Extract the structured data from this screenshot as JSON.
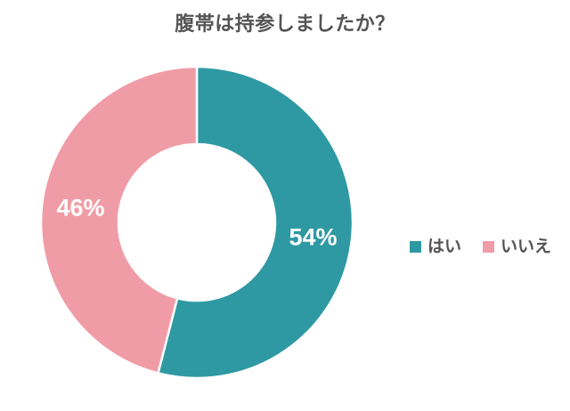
{
  "title": "腹帯は持参しましたか？",
  "chart_data": {
    "type": "pie",
    "subtype": "donut",
    "title": "腹帯は持参しましたか？",
    "categories": [
      "はい",
      "いいえ"
    ],
    "values": [
      54,
      46
    ],
    "labels": [
      "54%",
      "46%"
    ],
    "colors": [
      "#2F99A3",
      "#F09CA6"
    ],
    "start_angle_deg": 0,
    "direction": "clockwise",
    "donut_hole_ratio": 0.5,
    "legend_position": "right",
    "label_color": "#ffffff"
  },
  "legend": {
    "items": [
      {
        "label": "はい",
        "color": "#2F99A3"
      },
      {
        "label": "いいえ",
        "color": "#F09CA6"
      }
    ]
  },
  "colors": {
    "background": "#ffffff",
    "title_text": "#545454",
    "legend_text": "#545454",
    "slice_gap": "#ffffff"
  }
}
